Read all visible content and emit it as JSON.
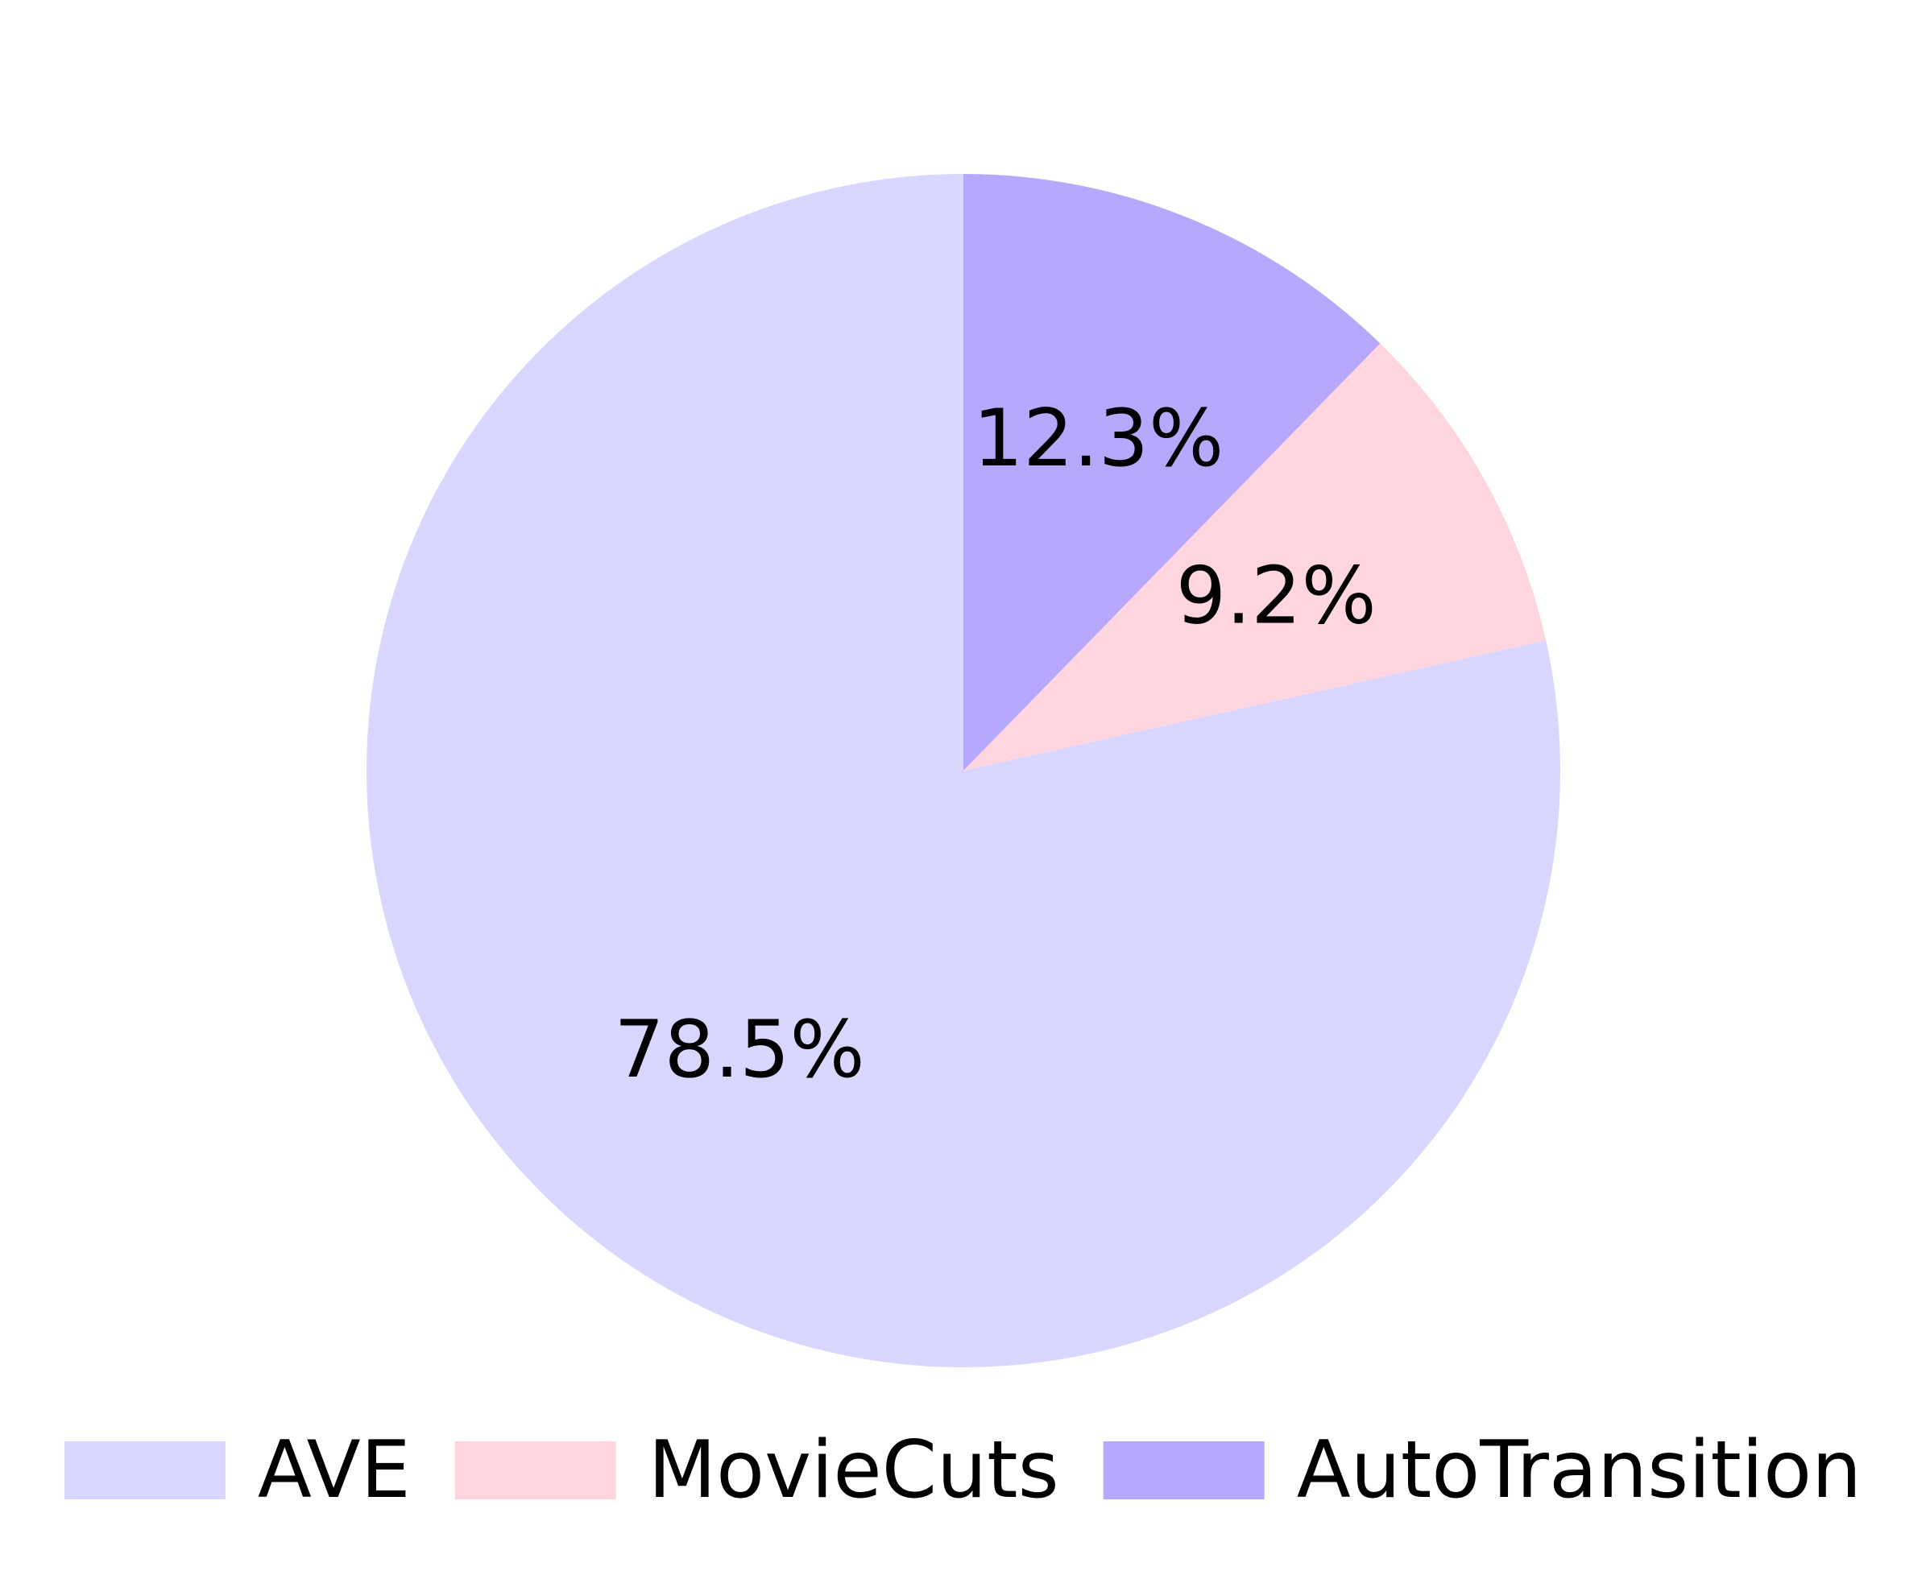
{
  "chart_data": {
    "type": "pie",
    "title": "",
    "start_angle_deg": 90,
    "direction": "counterclockwise",
    "slices": [
      {
        "label": "AVE",
        "value": 78.5,
        "label_text": "78.5%",
        "color": "#d9d6ff"
      },
      {
        "label": "MovieCuts",
        "value": 9.2,
        "label_text": "9.2%",
        "color": "#ffd6e0"
      },
      {
        "label": "AutoTransition",
        "value": 12.3,
        "label_text": "12.3%",
        "color": "#b7a8fd"
      }
    ],
    "legend": {
      "placement": "bottom",
      "entries": [
        "AVE",
        "MovieCuts",
        "AutoTransition"
      ]
    }
  }
}
